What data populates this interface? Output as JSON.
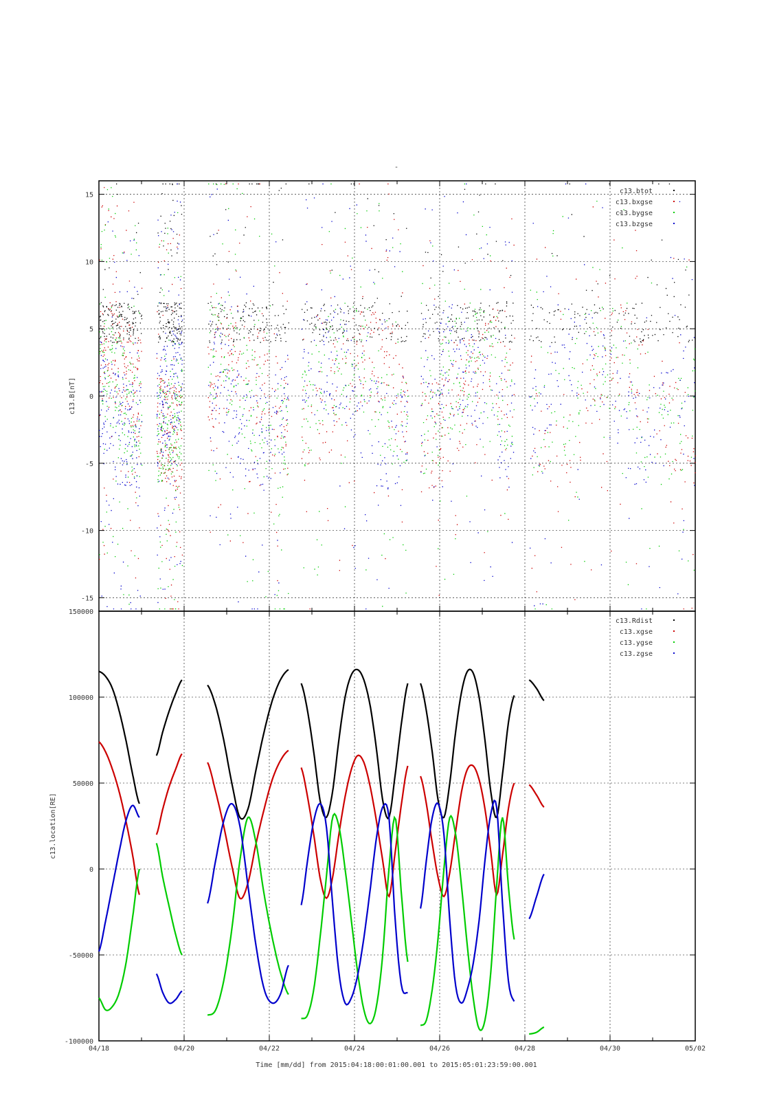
{
  "top_marker": "-",
  "footer": {
    "xlabel": "Time [mm/dd]  from 2015:04:18:00:01:00.001  to  2015:05:01:23:59:00.001"
  },
  "x_ticks": [
    "04/18",
    "04/20",
    "04/22",
    "04/24",
    "04/26",
    "04/28",
    "04/30",
    "05/02"
  ],
  "chart_data": [
    {
      "type": "scatter",
      "ylabel": "c13.B[nT]",
      "xlim": [
        0,
        14
      ],
      "ylim": [
        -16,
        16
      ],
      "y_ticks": [
        15,
        10,
        5,
        0,
        -5,
        -10,
        -15
      ],
      "grid": true,
      "legend_position": "top-right",
      "series": [
        {
          "name": "c13.btot",
          "color": "#000000"
        },
        {
          "name": "c13.bxgse",
          "color": "#cc0000"
        },
        {
          "name": "c13.bygse",
          "color": "#00cc00"
        },
        {
          "name": "c13.bzgse",
          "color": "#0000cc"
        }
      ],
      "data_segments": [
        [
          0.0,
          1.0
        ],
        [
          1.35,
          1.95
        ],
        [
          2.55,
          4.45
        ],
        [
          4.75,
          7.25
        ],
        [
          7.55,
          9.75
        ],
        [
          10.1,
          14.0
        ]
      ]
    },
    {
      "type": "line",
      "ylabel": "c13.location[RE]",
      "xlim": [
        0,
        14
      ],
      "ylim": [
        -100000,
        150000
      ],
      "y_ticks": [
        150000,
        100000,
        50000,
        0,
        -50000,
        -100000
      ],
      "grid": true,
      "legend_position": "top-right",
      "series": [
        {
          "name": "c13.Rdist",
          "color": "#000000"
        },
        {
          "name": "c13.xgse",
          "color": "#cc0000"
        },
        {
          "name": "c13.ygse",
          "color": "#00cc00"
        },
        {
          "name": "c13.zgse",
          "color": "#0000cc"
        }
      ],
      "segments": [
        {
          "x0": 0.0,
          "x1": 0.95,
          "rdist": [
            115000,
            112000,
            105000,
            92000,
            75000,
            55000,
            38000
          ],
          "xgse": [
            74000,
            68000,
            58000,
            45000,
            28000,
            8000,
            -15000
          ],
          "ygse": [
            -75000,
            -82000,
            -80000,
            -72000,
            -55000,
            -28000,
            0
          ],
          "zgse": [
            -48000,
            -30000,
            -10000,
            10000,
            28000,
            37000,
            30000
          ]
        },
        {
          "x0": 1.35,
          "x1": 1.95,
          "rdist": [
            66000,
            80000,
            92000,
            102000,
            110000
          ],
          "xgse": [
            20000,
            35000,
            48000,
            58000,
            67000
          ],
          "ygse": [
            15000,
            -5000,
            -22000,
            -38000,
            -50000
          ],
          "zgse": [
            -61000,
            -72000,
            -78000,
            -76000,
            -71000
          ]
        },
        {
          "x0": 2.55,
          "x1": 4.45,
          "rdist": [
            107000,
            95000,
            75000,
            50000,
            30000,
            35000,
            58000,
            80000,
            98000,
            110000,
            116000
          ],
          "xgse": [
            62000,
            45000,
            25000,
            2000,
            -17000,
            -8000,
            15000,
            35000,
            52000,
            63000,
            69000
          ],
          "ygse": [
            -85000,
            -82000,
            -65000,
            -35000,
            5000,
            30000,
            15000,
            -15000,
            -40000,
            -60000,
            -73000
          ],
          "zgse": [
            -20000,
            5000,
            28000,
            38000,
            25000,
            -10000,
            -45000,
            -70000,
            -78000,
            -73000,
            -56000
          ]
        },
        {
          "x0": 4.75,
          "x1": 7.25,
          "rdist": [
            108000,
            92000,
            68000,
            40000,
            30000,
            45000,
            75000,
            100000,
            113000,
            116000,
            110000,
            95000,
            70000,
            40000,
            30000,
            55000,
            85000,
            108000
          ],
          "xgse": [
            59000,
            42000,
            20000,
            -5000,
            -17000,
            -5000,
            20000,
            42000,
            58000,
            66000,
            62000,
            48000,
            28000,
            5000,
            -16000,
            10000,
            38000,
            60000
          ],
          "ygse": [
            -87000,
            -85000,
            -70000,
            -40000,
            -5000,
            30000,
            25000,
            0,
            -30000,
            -60000,
            -82000,
            -90000,
            -80000,
            -50000,
            0,
            30000,
            -15000,
            -54000
          ],
          "zgse": [
            -21000,
            5000,
            28000,
            38000,
            25000,
            -20000,
            -60000,
            -78000,
            -75000,
            -62000,
            -40000,
            -12000,
            18000,
            36000,
            30000,
            -30000,
            -68000,
            -72000
          ]
        },
        {
          "x0": 7.55,
          "x1": 9.75,
          "rdist": [
            108000,
            92000,
            68000,
            40000,
            30000,
            50000,
            80000,
            103000,
            115000,
            114000,
            100000,
            75000,
            45000,
            30000,
            55000,
            85000,
            101000
          ],
          "xgse": [
            54000,
            38000,
            15000,
            -5000,
            -16000,
            -2000,
            22000,
            45000,
            58000,
            60000,
            52000,
            35000,
            10000,
            -15000,
            8000,
            35000,
            50000
          ],
          "ygse": [
            -91000,
            -88000,
            -70000,
            -40000,
            0,
            30000,
            20000,
            -10000,
            -45000,
            -75000,
            -93000,
            -88000,
            -60000,
            -10000,
            30000,
            -10000,
            -41000
          ],
          "zgse": [
            -23000,
            5000,
            30000,
            38000,
            20000,
            -30000,
            -68000,
            -78000,
            -70000,
            -55000,
            -30000,
            5000,
            32000,
            36000,
            -20000,
            -65000,
            -77000
          ]
        },
        {
          "x0": 10.1,
          "x1": 10.45,
          "rdist": [
            110000,
            105000,
            98000
          ],
          "xgse": [
            49000,
            43000,
            36000
          ],
          "ygse": [
            -96000,
            -95000,
            -92000
          ],
          "zgse": [
            -29000,
            -16000,
            -3000
          ]
        }
      ]
    }
  ]
}
